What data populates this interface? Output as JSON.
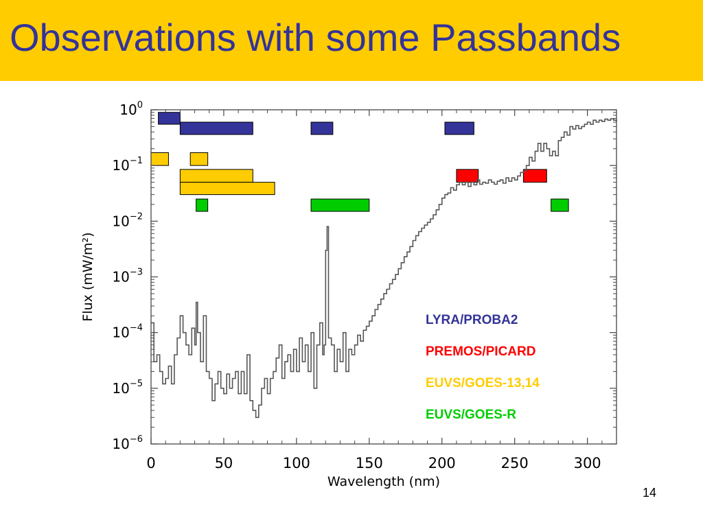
{
  "slide": {
    "title": "Observations with some Passbands",
    "page_number": "14",
    "title_bar_color": "#ffcc00",
    "title_color": "#333399"
  },
  "chart_data": {
    "type": "line",
    "xlabel": "Wavelength (nm)",
    "ylabel": "Flux (mW/m²)",
    "xlim": [
      0,
      320
    ],
    "ylim": [
      1e-06,
      1
    ],
    "yscale": "log",
    "x_ticks": [
      0,
      50,
      100,
      150,
      200,
      250,
      300
    ],
    "y_ticks": [
      {
        "value": 1,
        "base": "10",
        "exp": "0"
      },
      {
        "value": 0.1,
        "base": "10",
        "exp": "−1"
      },
      {
        "value": 0.01,
        "base": "10",
        "exp": "−2"
      },
      {
        "value": 0.001,
        "base": "10",
        "exp": "−3"
      },
      {
        "value": 0.0001,
        "base": "10",
        "exp": "−4"
      },
      {
        "value": 1e-05,
        "base": "10",
        "exp": "−5"
      },
      {
        "value": 1e-06,
        "base": "10",
        "exp": "−6"
      }
    ],
    "grid": false,
    "spectrum": {
      "color": "#555555",
      "points": [
        [
          0,
          0.00015
        ],
        [
          2,
          3e-05
        ],
        [
          4,
          4e-05
        ],
        [
          6,
          2e-05
        ],
        [
          8,
          1.2e-05
        ],
        [
          10,
          1.5e-05
        ],
        [
          12,
          2.5e-05
        ],
        [
          14,
          1.2e-05
        ],
        [
          16,
          4e-05
        ],
        [
          18,
          8e-05
        ],
        [
          20,
          0.0002
        ],
        [
          22,
          0.0001
        ],
        [
          24,
          6e-05
        ],
        [
          26,
          4e-05
        ],
        [
          28,
          0.00012
        ],
        [
          30,
          6e-05
        ],
        [
          31,
          0.00035
        ],
        [
          32,
          0.0001
        ],
        [
          34,
          3e-05
        ],
        [
          36,
          0.0002
        ],
        [
          38,
          2e-05
        ],
        [
          40,
          1.5e-05
        ],
        [
          42,
          6e-06
        ],
        [
          44,
          1.2e-05
        ],
        [
          46,
          2e-05
        ],
        [
          48,
          1e-05
        ],
        [
          50,
          8e-06
        ],
        [
          52,
          1.8e-05
        ],
        [
          54,
          1e-05
        ],
        [
          56,
          1.5e-05
        ],
        [
          58,
          2e-05
        ],
        [
          60,
          8e-06
        ],
        [
          62,
          2e-05
        ],
        [
          64,
          8e-06
        ],
        [
          66,
          4e-05
        ],
        [
          68,
          6e-06
        ],
        [
          70,
          4e-06
        ],
        [
          72,
          3e-06
        ],
        [
          74,
          5e-06
        ],
        [
          76,
          1e-05
        ],
        [
          78,
          1.5e-05
        ],
        [
          80,
          8e-06
        ],
        [
          82,
          1.5e-05
        ],
        [
          84,
          2e-05
        ],
        [
          86,
          3.5e-05
        ],
        [
          88,
          6e-05
        ],
        [
          90,
          1.5e-05
        ],
        [
          92,
          3e-05
        ],
        [
          94,
          4e-05
        ],
        [
          96,
          2e-05
        ],
        [
          98,
          5e-05
        ],
        [
          100,
          2e-05
        ],
        [
          102,
          8e-05
        ],
        [
          104,
          3e-05
        ],
        [
          106,
          6e-05
        ],
        [
          108,
          2e-05
        ],
        [
          110,
          0.0001
        ],
        [
          112,
          1e-05
        ],
        [
          114,
          6e-05
        ],
        [
          116,
          0.00015
        ],
        [
          118,
          4e-05
        ],
        [
          119,
          6e-05
        ],
        [
          120,
          0.003
        ],
        [
          121,
          0.008
        ],
        [
          122,
          8e-05
        ],
        [
          124,
          6e-05
        ],
        [
          126,
          2e-05
        ],
        [
          128,
          5e-05
        ],
        [
          130,
          3e-05
        ],
        [
          132,
          0.0001
        ],
        [
          134,
          2e-05
        ],
        [
          136,
          5e-05
        ],
        [
          138,
          4e-05
        ],
        [
          140,
          6e-05
        ],
        [
          142,
          9e-05
        ],
        [
          144,
          7e-05
        ],
        [
          146,
          0.00011
        ],
        [
          148,
          0.00013
        ],
        [
          150,
          0.00016
        ],
        [
          152,
          0.0002
        ],
        [
          154,
          0.00026
        ],
        [
          156,
          0.00032
        ],
        [
          158,
          0.0004
        ],
        [
          160,
          0.0005
        ],
        [
          162,
          0.0006
        ],
        [
          164,
          0.00075
        ],
        [
          166,
          0.0009
        ],
        [
          168,
          0.0011
        ],
        [
          170,
          0.0014
        ],
        [
          172,
          0.0018
        ],
        [
          174,
          0.0023
        ],
        [
          176,
          0.0028
        ],
        [
          178,
          0.0035
        ],
        [
          180,
          0.0045
        ],
        [
          182,
          0.0055
        ],
        [
          184,
          0.0065
        ],
        [
          186,
          0.0075
        ],
        [
          188,
          0.0085
        ],
        [
          190,
          0.0095
        ],
        [
          192,
          0.011
        ],
        [
          194,
          0.013
        ],
        [
          196,
          0.016
        ],
        [
          198,
          0.02
        ],
        [
          200,
          0.026
        ],
        [
          202,
          0.03
        ],
        [
          204,
          0.032
        ],
        [
          206,
          0.04
        ],
        [
          208,
          0.036
        ],
        [
          210,
          0.045
        ],
        [
          212,
          0.05
        ],
        [
          214,
          0.045
        ],
        [
          216,
          0.05
        ],
        [
          218,
          0.042
        ],
        [
          220,
          0.05
        ],
        [
          222,
          0.045
        ],
        [
          224,
          0.055
        ],
        [
          226,
          0.046
        ],
        [
          228,
          0.05
        ],
        [
          230,
          0.048
        ],
        [
          232,
          0.055
        ],
        [
          234,
          0.05
        ],
        [
          236,
          0.046
        ],
        [
          238,
          0.052
        ],
        [
          240,
          0.055
        ],
        [
          242,
          0.048
        ],
        [
          244,
          0.06
        ],
        [
          246,
          0.052
        ],
        [
          248,
          0.06
        ],
        [
          250,
          0.055
        ],
        [
          252,
          0.065
        ],
        [
          254,
          0.075
        ],
        [
          256,
          0.08
        ],
        [
          258,
          0.1
        ],
        [
          260,
          0.14
        ],
        [
          262,
          0.12
        ],
        [
          264,
          0.18
        ],
        [
          266,
          0.25
        ],
        [
          268,
          0.18
        ],
        [
          270,
          0.25
        ],
        [
          272,
          0.2
        ],
        [
          274,
          0.15
        ],
        [
          276,
          0.18
        ],
        [
          278,
          0.15
        ],
        [
          280,
          0.28
        ],
        [
          282,
          0.32
        ],
        [
          284,
          0.4
        ],
        [
          286,
          0.35
        ],
        [
          288,
          0.5
        ],
        [
          290,
          0.45
        ],
        [
          292,
          0.52
        ],
        [
          294,
          0.46
        ],
        [
          296,
          0.5
        ],
        [
          298,
          0.55
        ],
        [
          300,
          0.6
        ],
        [
          302,
          0.55
        ],
        [
          304,
          0.65
        ],
        [
          306,
          0.6
        ],
        [
          308,
          0.65
        ],
        [
          310,
          0.62
        ],
        [
          312,
          0.68
        ],
        [
          314,
          0.65
        ],
        [
          316,
          0.69
        ],
        [
          318,
          0.65
        ],
        [
          320,
          0.62
        ]
      ]
    },
    "passbands": [
      {
        "instrument": "LYRA/PROBA2",
        "color": "#333399",
        "x0": 5,
        "x1": 20,
        "y_top": 0.9,
        "y_bottom": 0.55
      },
      {
        "instrument": "LYRA/PROBA2",
        "color": "#333399",
        "x0": 20,
        "x1": 70,
        "y_top": 0.6,
        "y_bottom": 0.36
      },
      {
        "instrument": "LYRA/PROBA2",
        "color": "#333399",
        "x0": 110,
        "x1": 125,
        "y_top": 0.6,
        "y_bottom": 0.36
      },
      {
        "instrument": "LYRA/PROBA2",
        "color": "#333399",
        "x0": 202,
        "x1": 222,
        "y_top": 0.6,
        "y_bottom": 0.36
      },
      {
        "instrument": "EUVS/GOES-13,14",
        "color": "#ffcc00",
        "x0": 0,
        "x1": 12,
        "y_top": 0.17,
        "y_bottom": 0.1
      },
      {
        "instrument": "EUVS/GOES-13,14",
        "color": "#ffcc00",
        "x0": 27,
        "x1": 39,
        "y_top": 0.17,
        "y_bottom": 0.1
      },
      {
        "instrument": "EUVS/GOES-13,14",
        "color": "#ffcc00",
        "x0": 20,
        "x1": 70,
        "y_top": 0.085,
        "y_bottom": 0.05
      },
      {
        "instrument": "EUVS/GOES-13,14",
        "color": "#ffcc00",
        "x0": 20,
        "x1": 85,
        "y_top": 0.05,
        "y_bottom": 0.03
      },
      {
        "instrument": "PREMOS/PICARD",
        "color": "#ff0000",
        "x0": 210,
        "x1": 225,
        "y_top": 0.085,
        "y_bottom": 0.05
      },
      {
        "instrument": "PREMOS/PICARD",
        "color": "#ff0000",
        "x0": 256,
        "x1": 272,
        "y_top": 0.085,
        "y_bottom": 0.05
      },
      {
        "instrument": "EUVS/GOES-R",
        "color": "#00cc00",
        "x0": 31,
        "x1": 39,
        "y_top": 0.025,
        "y_bottom": 0.015
      },
      {
        "instrument": "EUVS/GOES-R",
        "color": "#00cc00",
        "x0": 110,
        "x1": 150,
        "y_top": 0.025,
        "y_bottom": 0.015
      },
      {
        "instrument": "EUVS/GOES-R",
        "color": "#00cc00",
        "x0": 275,
        "x1": 287,
        "y_top": 0.025,
        "y_bottom": 0.015
      }
    ],
    "legend": [
      {
        "label": "LYRA/PROBA2",
        "color": "#333399"
      },
      {
        "label": "PREMOS/PICARD",
        "color": "#ff0000"
      },
      {
        "label": "EUVS/GOES-13,14",
        "color": "#ffcc00"
      },
      {
        "label": "EUVS/GOES-R",
        "color": "#00cc00"
      }
    ],
    "legend_position": "bottom-right inside"
  }
}
